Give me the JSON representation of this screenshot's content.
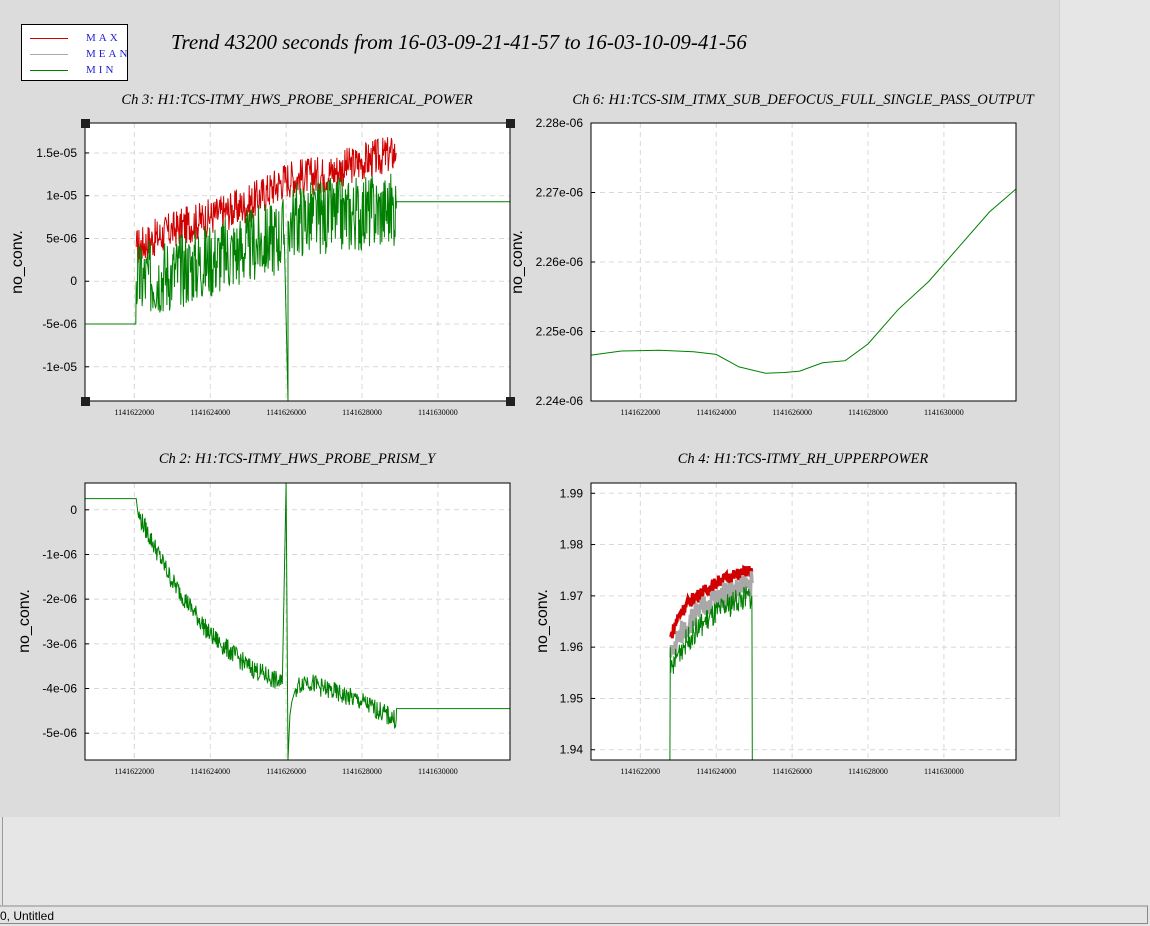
{
  "window": {
    "status_text": "0, Untitled"
  },
  "title": "Trend 43200 seconds from 16-03-09-21-41-57 to 16-03-10-09-41-56",
  "legend": [
    {
      "label": "MAX",
      "color": "#d00000"
    },
    {
      "label": "MEAN",
      "color": "#a8a8a8"
    },
    {
      "label": "MIN",
      "color": "#008000"
    }
  ],
  "chart_data": [
    {
      "type": "line",
      "title": "Ch 3: H1:TCS-ITMY_HWS_PROBE_SPHERICAL_POWER",
      "ylabel": "no_conv.",
      "xlabel": "",
      "xlim": [
        1141620700,
        1141631900
      ],
      "ylim": [
        -1.4e-05,
        1.85e-05
      ],
      "x_ticks": [
        1141622000,
        1141624000,
        1141626000,
        1141628000,
        1141630000
      ],
      "y_ticks": [
        1.5e-05,
        1e-05,
        5e-06,
        0,
        -5e-06,
        -1e-05
      ],
      "y_tick_labels": [
        "1.5e-05",
        "1e-05",
        "5e-06",
        "0",
        "-5e-06",
        "-1e-05"
      ],
      "selected": true,
      "series": [
        {
          "name": "MIN",
          "color": "#008000",
          "x": [
            1141620700,
            1141622040,
            1141622050,
            1141623000,
            1141624000,
            1141625000,
            1141625950,
            1141626050,
            1141626050,
            1141626200,
            1141627000,
            1141628000,
            1141628900,
            1141628910,
            1141631900
          ],
          "y": [
            -5e-06,
            -5e-06,
            0,
            1e-06,
            2.5e-06,
            4e-06,
            5.5e-06,
            -1.4e-05,
            7e-06,
            7.2e-06,
            7.5e-06,
            8e-06,
            8.5e-06,
            9.3e-06,
            9.3e-06
          ]
        },
        {
          "name": "MAX",
          "color": "#d00000",
          "x": [
            1141622050,
            1141623000,
            1141624000,
            1141625000,
            1141626000,
            1141627000,
            1141628000,
            1141628900
          ],
          "y": [
            4e-06,
            6e-06,
            7.5e-06,
            9e-06,
            1.2e-05,
            1.25e-05,
            1.4e-05,
            1.5e-05
          ]
        }
      ]
    },
    {
      "type": "line",
      "title": "Ch 6: H1:TCS-SIM_ITMX_SUB_DEFOCUS_FULL_SINGLE_PASS_OUTPUT",
      "ylabel": "no_conv.",
      "xlabel": "",
      "xlim": [
        1141620700,
        1141631900
      ],
      "ylim": [
        2.24e-06,
        2.28e-06
      ],
      "x_ticks": [
        1141622000,
        1141624000,
        1141626000,
        1141628000,
        1141630000
      ],
      "y_ticks": [
        2.28e-06,
        2.27e-06,
        2.26e-06,
        2.25e-06,
        2.24e-06
      ],
      "y_tick_labels": [
        "2.28e-06",
        "2.27e-06",
        "2.26e-06",
        "2.25e-06",
        "2.24e-06"
      ],
      "series": [
        {
          "name": "MIN",
          "color": "#008000",
          "x": [
            1141620700,
            1141621500,
            1141622500,
            1141623400,
            1141624000,
            1141624600,
            1141625300,
            1141625800,
            1141626200,
            1141626800,
            1141627400,
            1141628000,
            1141628800,
            1141629600,
            1141630400,
            1141631200,
            1141631900
          ],
          "y": [
            2.2466e-06,
            2.2472e-06,
            2.2473e-06,
            2.2471e-06,
            2.2467e-06,
            2.2449e-06,
            2.244e-06,
            2.2441e-06,
            2.2443e-06,
            2.2455e-06,
            2.2458e-06,
            2.2482e-06,
            2.2532e-06,
            2.2572e-06,
            2.2622e-06,
            2.2672e-06,
            2.2705e-06
          ]
        }
      ]
    },
    {
      "type": "line",
      "title": "Ch 2: H1:TCS-ITMY_HWS_PROBE_PRISM_Y",
      "ylabel": "no_conv.",
      "xlabel": "",
      "xlim": [
        1141620700,
        1141631900
      ],
      "ylim": [
        -5.6e-06,
        6e-07
      ],
      "x_ticks": [
        1141622000,
        1141624000,
        1141626000,
        1141628000,
        1141630000
      ],
      "y_ticks": [
        0,
        -1e-06,
        -2e-06,
        -3e-06,
        -4e-06,
        -5e-06
      ],
      "y_tick_labels": [
        "0",
        "-1e-06",
        "-2e-06",
        "-3e-06",
        "-4e-06",
        "-5e-06"
      ],
      "series": [
        {
          "name": "MIN",
          "color": "#008000",
          "x": [
            1141620700,
            1141622050,
            1141622100,
            1141623000,
            1141624000,
            1141625000,
            1141625900,
            1141626000,
            1141626050,
            1141626100,
            1141626150,
            1141626250,
            1141626500,
            1141627000,
            1141628000,
            1141628900,
            1141628910,
            1141631900
          ],
          "y": [
            2.5e-07,
            2.5e-07,
            -1e-07,
            -1.6e-06,
            -2.8e-06,
            -3.5e-06,
            -3.9e-06,
            6e-07,
            -5.6e-06,
            -4.6e-06,
            -4.3e-06,
            -4e-06,
            -3.8e-06,
            -4e-06,
            -4.3e-06,
            -4.7e-06,
            -4.45e-06,
            -4.45e-06
          ]
        }
      ]
    },
    {
      "type": "line",
      "title": "Ch 4: H1:TCS-ITMY_RH_UPPERPOWER",
      "ylabel": "no_conv.",
      "xlabel": "",
      "xlim": [
        1141620700,
        1141631900
      ],
      "ylim": [
        1.938,
        1.992
      ],
      "x_ticks": [
        1141622000,
        1141624000,
        1141626000,
        1141628000,
        1141630000
      ],
      "y_ticks": [
        1.99,
        1.98,
        1.97,
        1.96,
        1.95,
        1.94
      ],
      "y_tick_labels": [
        "1.99",
        "1.98",
        "1.97",
        "1.96",
        "1.95",
        "1.94"
      ],
      "series": [
        {
          "name": "MAX",
          "color": "#d00000",
          "x": [
            1141622800,
            1141623000,
            1141623300,
            1141623700,
            1141624100,
            1141624500,
            1141624950
          ],
          "y": [
            1.962,
            1.966,
            1.969,
            1.971,
            1.973,
            1.974,
            1.975
          ]
        },
        {
          "name": "MEAN",
          "color": "#a8a8a8",
          "x": [
            1141622800,
            1141623000,
            1141623300,
            1141623700,
            1141624100,
            1141624500,
            1141624950
          ],
          "y": [
            1.958,
            1.962,
            1.965,
            1.968,
            1.97,
            1.971,
            1.9725
          ]
        },
        {
          "name": "MIN",
          "color": "#008000",
          "x": [
            1141622780,
            1141622790,
            1141622800,
            1141623000,
            1141623300,
            1141623700,
            1141624100,
            1141624500,
            1141624940,
            1141624950
          ],
          "y": [
            1.938,
            1.96,
            1.955,
            1.959,
            1.962,
            1.965,
            1.967,
            1.969,
            1.97,
            1.938
          ]
        }
      ]
    }
  ]
}
